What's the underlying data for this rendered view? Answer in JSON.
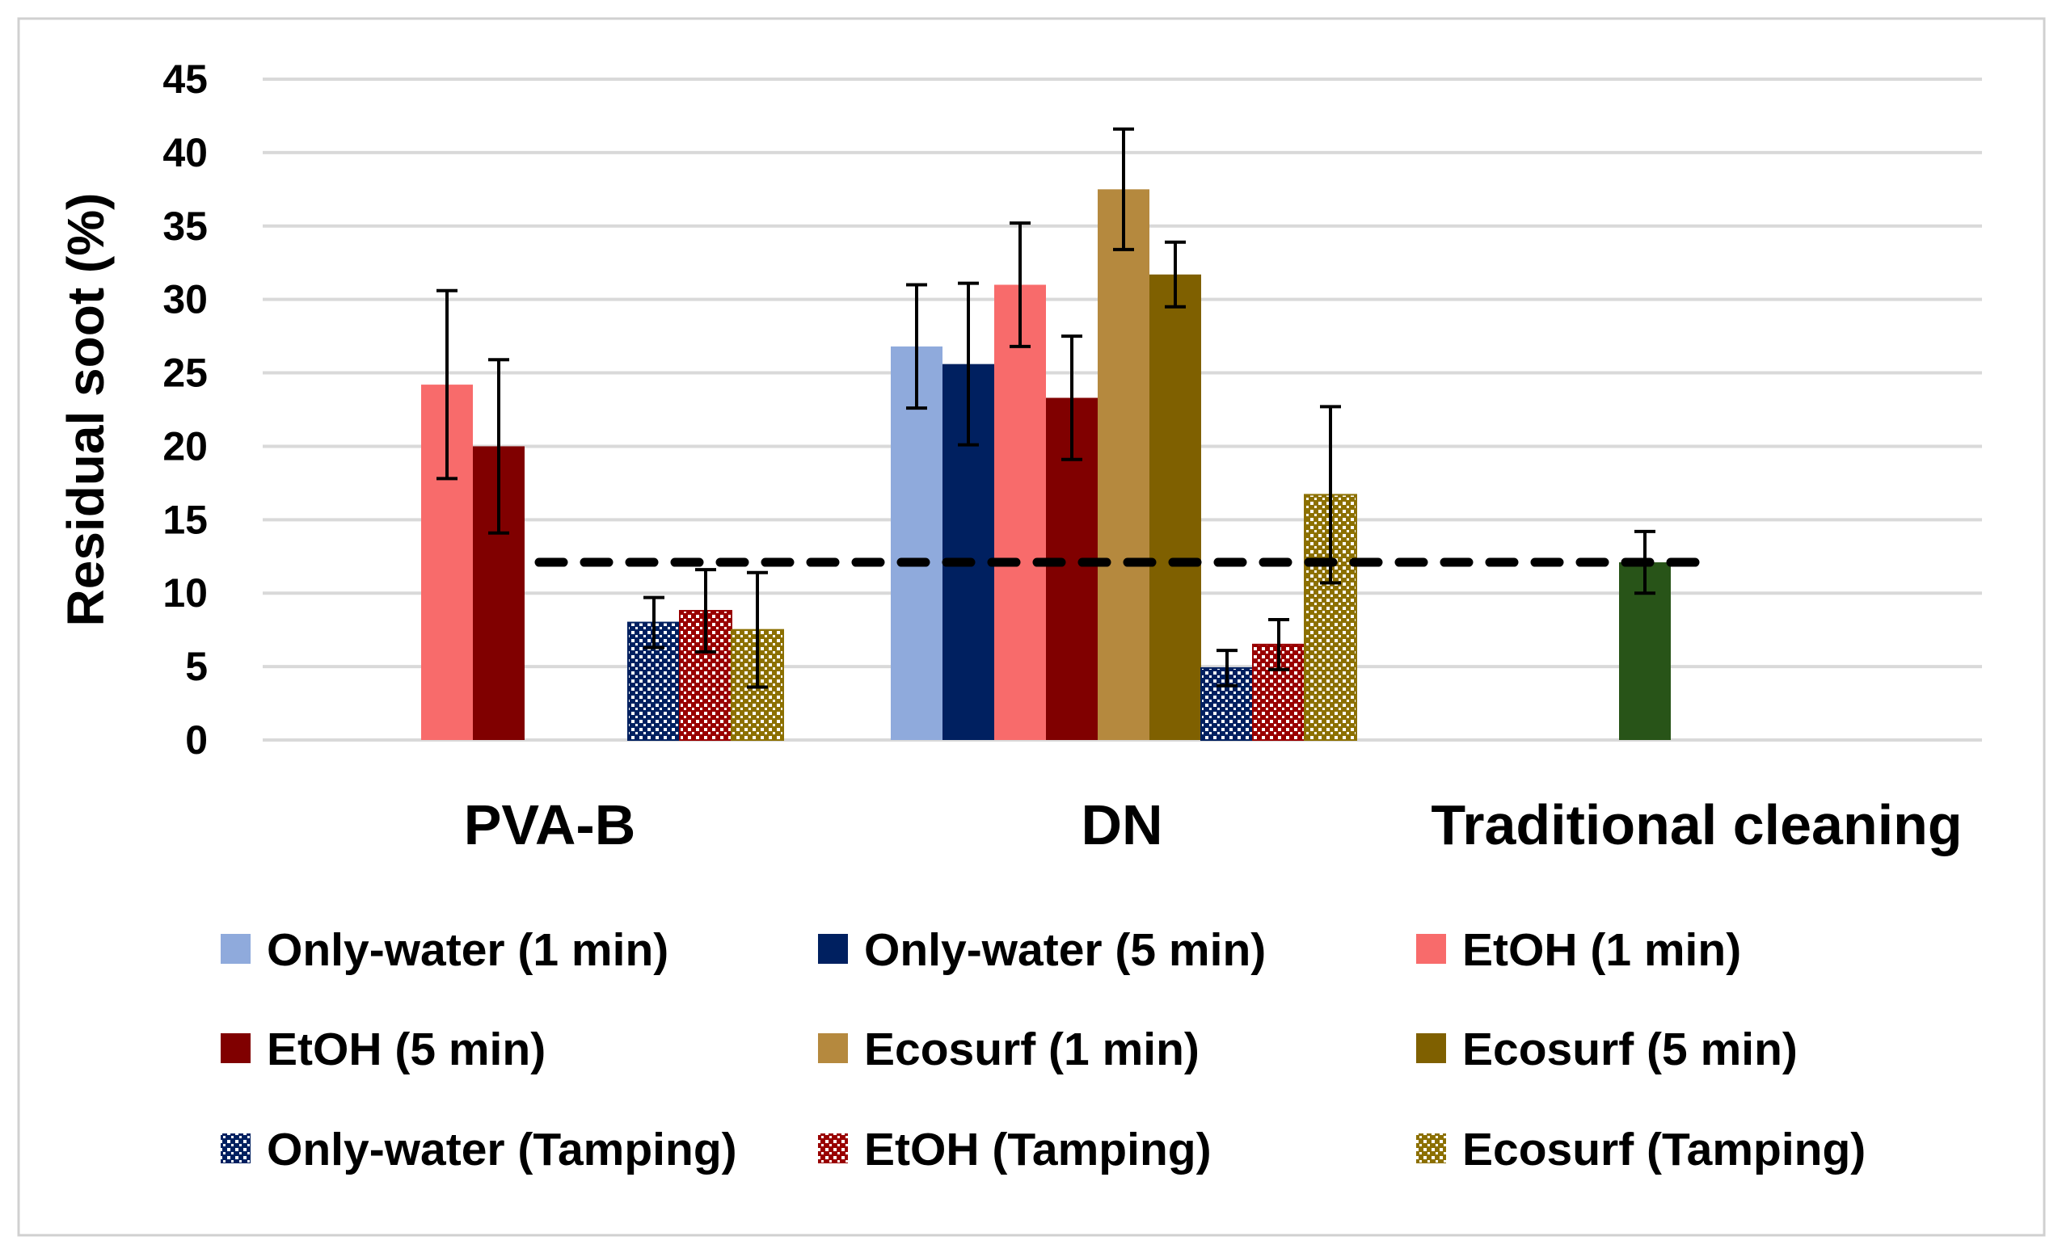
{
  "chart_data": {
    "type": "bar",
    "title": "",
    "xlabel": "",
    "ylabel": "Residual soot (%)",
    "ylim": [
      0,
      45
    ],
    "yticks": [
      0,
      5,
      10,
      15,
      20,
      25,
      30,
      35,
      40,
      45
    ],
    "grid": true,
    "legend_placement": "bottom",
    "categories": [
      "PVA-B",
      "DN",
      "Traditional cleaning"
    ],
    "reference_line": {
      "value": 12.1,
      "style": "dashed",
      "color": "#000000"
    },
    "series": [
      {
        "name": "Only-water (1 min)",
        "color": "#8FAADC",
        "pattern": false,
        "values": [
          null,
          26.8,
          null
        ],
        "errors": [
          null,
          4.2,
          null
        ]
      },
      {
        "name": "Only-water (5 min)",
        "color": "#002060",
        "pattern": false,
        "values": [
          null,
          25.6,
          null
        ],
        "errors": [
          null,
          5.5,
          null
        ]
      },
      {
        "name": "EtOH (1 min)",
        "color": "#F86B6B",
        "pattern": false,
        "values": [
          24.2,
          31.0,
          null
        ],
        "errors": [
          6.4,
          4.2,
          null
        ]
      },
      {
        "name": "EtOH (5 min)",
        "color": "#800000",
        "pattern": false,
        "values": [
          20.0,
          23.3,
          null
        ],
        "errors": [
          5.9,
          4.2,
          null
        ]
      },
      {
        "name": "Ecosurf (1 min)",
        "color": "#B5893E",
        "pattern": false,
        "values": [
          null,
          37.5,
          null
        ],
        "errors": [
          null,
          4.1,
          null
        ]
      },
      {
        "name": "Ecosurf (5 min)",
        "color": "#7F6000",
        "pattern": false,
        "values": [
          null,
          31.7,
          null
        ],
        "errors": [
          null,
          2.2,
          null
        ]
      },
      {
        "name": "Only-water (Tamping)",
        "color": "#002060",
        "pattern": true,
        "values": [
          8.0,
          4.9,
          null
        ],
        "errors": [
          1.7,
          1.2,
          null
        ]
      },
      {
        "name": "EtOH (Tamping)",
        "color": "#990000",
        "pattern": true,
        "values": [
          8.8,
          6.5,
          null
        ],
        "errors": [
          2.8,
          1.7,
          null
        ]
      },
      {
        "name": "Ecosurf (Tamping)",
        "color": "#8C7000",
        "pattern": true,
        "values": [
          7.5,
          16.7,
          null
        ],
        "errors": [
          3.9,
          6.0,
          null
        ]
      },
      {
        "name": "Traditional cleaning",
        "color": "#285418",
        "pattern": false,
        "in_legend": false,
        "values": [
          null,
          null,
          12.1
        ],
        "errors": [
          null,
          null,
          2.1
        ]
      }
    ]
  }
}
